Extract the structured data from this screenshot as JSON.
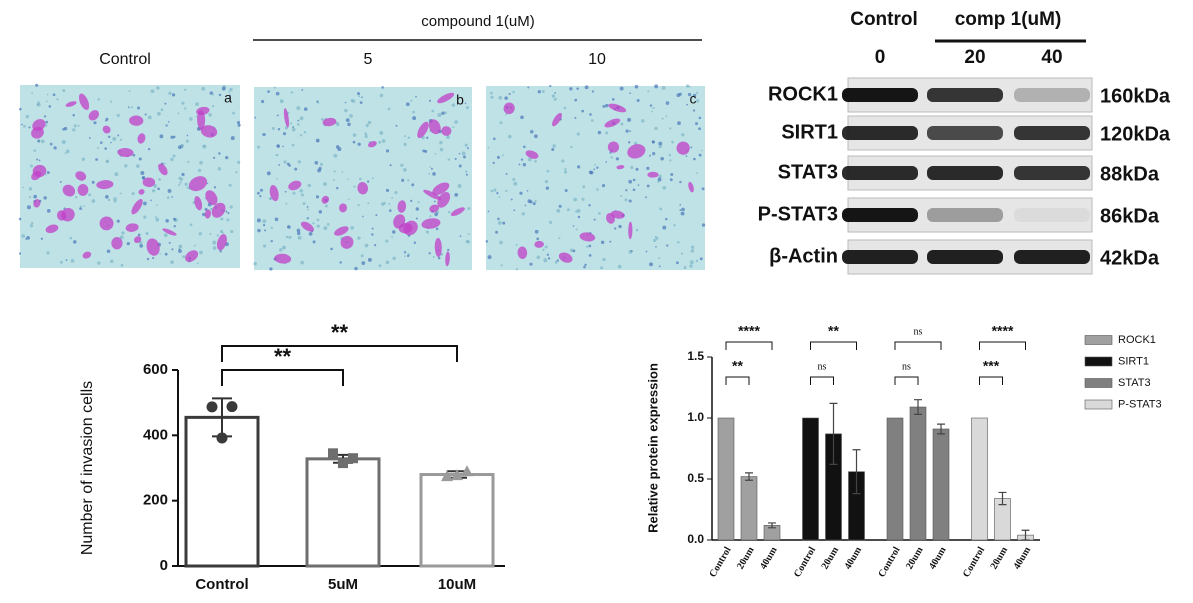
{
  "micrographs": {
    "title": "compound 1(uM)",
    "columns": [
      "Control",
      "5",
      "10"
    ],
    "panels": [
      "a",
      "b",
      "c"
    ]
  },
  "western_blot": {
    "title": "Control",
    "header": "comp 1(uM)",
    "lanes": [
      "0",
      "20",
      "40"
    ],
    "rows": [
      {
        "label": "ROCK1",
        "size": "160kDa"
      },
      {
        "label": "SIRT1",
        "size": "120kDa"
      },
      {
        "label": "STAT3",
        "size": "88kDa"
      },
      {
        "label": "P-STAT3",
        "size": "86kDa"
      },
      {
        "label": "β-Actin",
        "size": "42kDa"
      }
    ]
  },
  "chart_data": [
    {
      "type": "bar",
      "categories": [
        "Control",
        "5uM",
        "10uM"
      ],
      "values": [
        455,
        328,
        280
      ],
      "errors": [
        58,
        12,
        10
      ],
      "points": [
        [
          487,
          488,
          392
        ],
        [
          345,
          330,
          315
        ],
        [
          275,
          290,
          278
        ]
      ],
      "colors": [
        "#3a3a3a",
        "#6e6e6e",
        "#9a9a9a"
      ],
      "ylabel": "Number of invasion cells",
      "ylim": [
        0,
        600
      ],
      "yticks": [
        0,
        200,
        400,
        600
      ],
      "significance": [
        "**",
        "**"
      ]
    },
    {
      "type": "grouped-bar",
      "categories": [
        "Control",
        "20um",
        "40um"
      ],
      "ylabel": "Relative protein expression",
      "ylim": [
        0,
        1.5
      ],
      "yticks": [
        {
          "value": 0,
          "label": "0.0"
        },
        {
          "value": 0.5,
          "label": "0.5"
        },
        {
          "value": 1,
          "label": "1.0"
        },
        {
          "value": 1.5,
          "label": "1.5"
        }
      ],
      "legend": "right",
      "series": [
        {
          "name": "ROCK1",
          "color": "#a0a0a0",
          "values": [
            1,
            0.52,
            0.12
          ],
          "errors": [
            null,
            0.03,
            0.02
          ],
          "significance": [
            "**",
            "****"
          ]
        },
        {
          "name": "SIRT1",
          "color": "#111111",
          "values": [
            1,
            0.87,
            0.56
          ],
          "errors": [
            null,
            0.25,
            0.18
          ],
          "significance": [
            "ns",
            "**"
          ]
        },
        {
          "name": "STAT3",
          "color": "#808080",
          "values": [
            1,
            1.09,
            0.91
          ],
          "errors": [
            null,
            0.06,
            0.04
          ],
          "significance": [
            "ns",
            "ns"
          ]
        },
        {
          "name": "P-STAT3",
          "color": "#d9d9d9",
          "values": [
            1,
            0.34,
            0.04
          ],
          "errors": [
            null,
            0.05,
            0.04
          ],
          "significance": [
            "***",
            "****"
          ]
        }
      ]
    }
  ]
}
